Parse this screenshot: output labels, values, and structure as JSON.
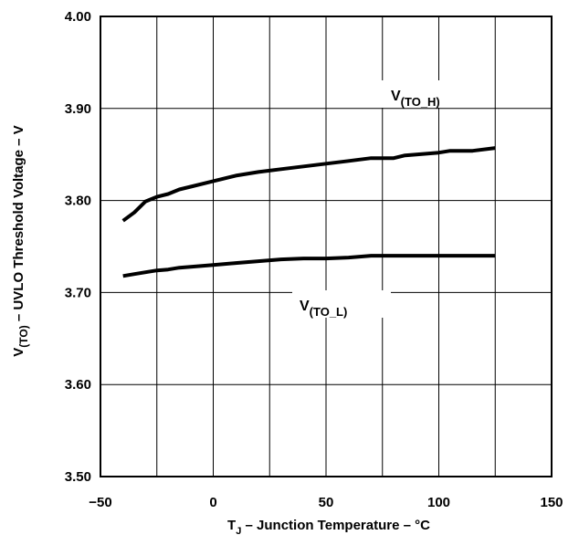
{
  "chart_data": {
    "type": "line",
    "xlabel": {
      "main": "T",
      "sub": "J",
      "rest": " – Junction Temperature – °C"
    },
    "ylabel": {
      "main": "V",
      "sub": "(TO)",
      "rest": " – UVLO Threshold Voltage – V"
    },
    "xlim": [
      -50,
      150
    ],
    "ylim": [
      3.5,
      4.0
    ],
    "xticks": [
      -50,
      0,
      50,
      100,
      150
    ],
    "xtick_labels": [
      "−50",
      "0",
      "50",
      "100",
      "150"
    ],
    "yticks": [
      3.5,
      3.6,
      3.7,
      3.8,
      3.9,
      4.0
    ],
    "ytick_labels": [
      "3.50",
      "3.60",
      "3.70",
      "3.80",
      "3.90",
      "4.00"
    ],
    "grid": true,
    "series": [
      {
        "name": "V(TO_H)",
        "label_main": "V",
        "label_sub": "(TO_H)",
        "x": [
          -40,
          -35,
          -30,
          -25,
          -20,
          -15,
          -10,
          0,
          10,
          20,
          30,
          40,
          50,
          60,
          70,
          75,
          80,
          85,
          90,
          100,
          105,
          115,
          125
        ],
        "y": [
          3.778,
          3.787,
          3.799,
          3.804,
          3.807,
          3.812,
          3.815,
          3.821,
          3.827,
          3.831,
          3.834,
          3.837,
          3.84,
          3.843,
          3.846,
          3.846,
          3.846,
          3.849,
          3.85,
          3.852,
          3.854,
          3.854,
          3.857
        ]
      },
      {
        "name": "V(TO_L)",
        "label_main": "V",
        "label_sub": "(TO_L)",
        "x": [
          -40,
          -35,
          -30,
          -25,
          -20,
          -15,
          -10,
          0,
          10,
          20,
          30,
          40,
          50,
          60,
          70,
          80,
          90,
          100,
          110,
          125
        ],
        "y": [
          3.718,
          3.72,
          3.722,
          3.724,
          3.725,
          3.727,
          3.728,
          3.73,
          3.732,
          3.734,
          3.736,
          3.737,
          3.737,
          3.738,
          3.74,
          3.74,
          3.74,
          3.74,
          3.74,
          3.74
        ]
      }
    ],
    "line_color": "#000000",
    "background": "#ffffff"
  }
}
